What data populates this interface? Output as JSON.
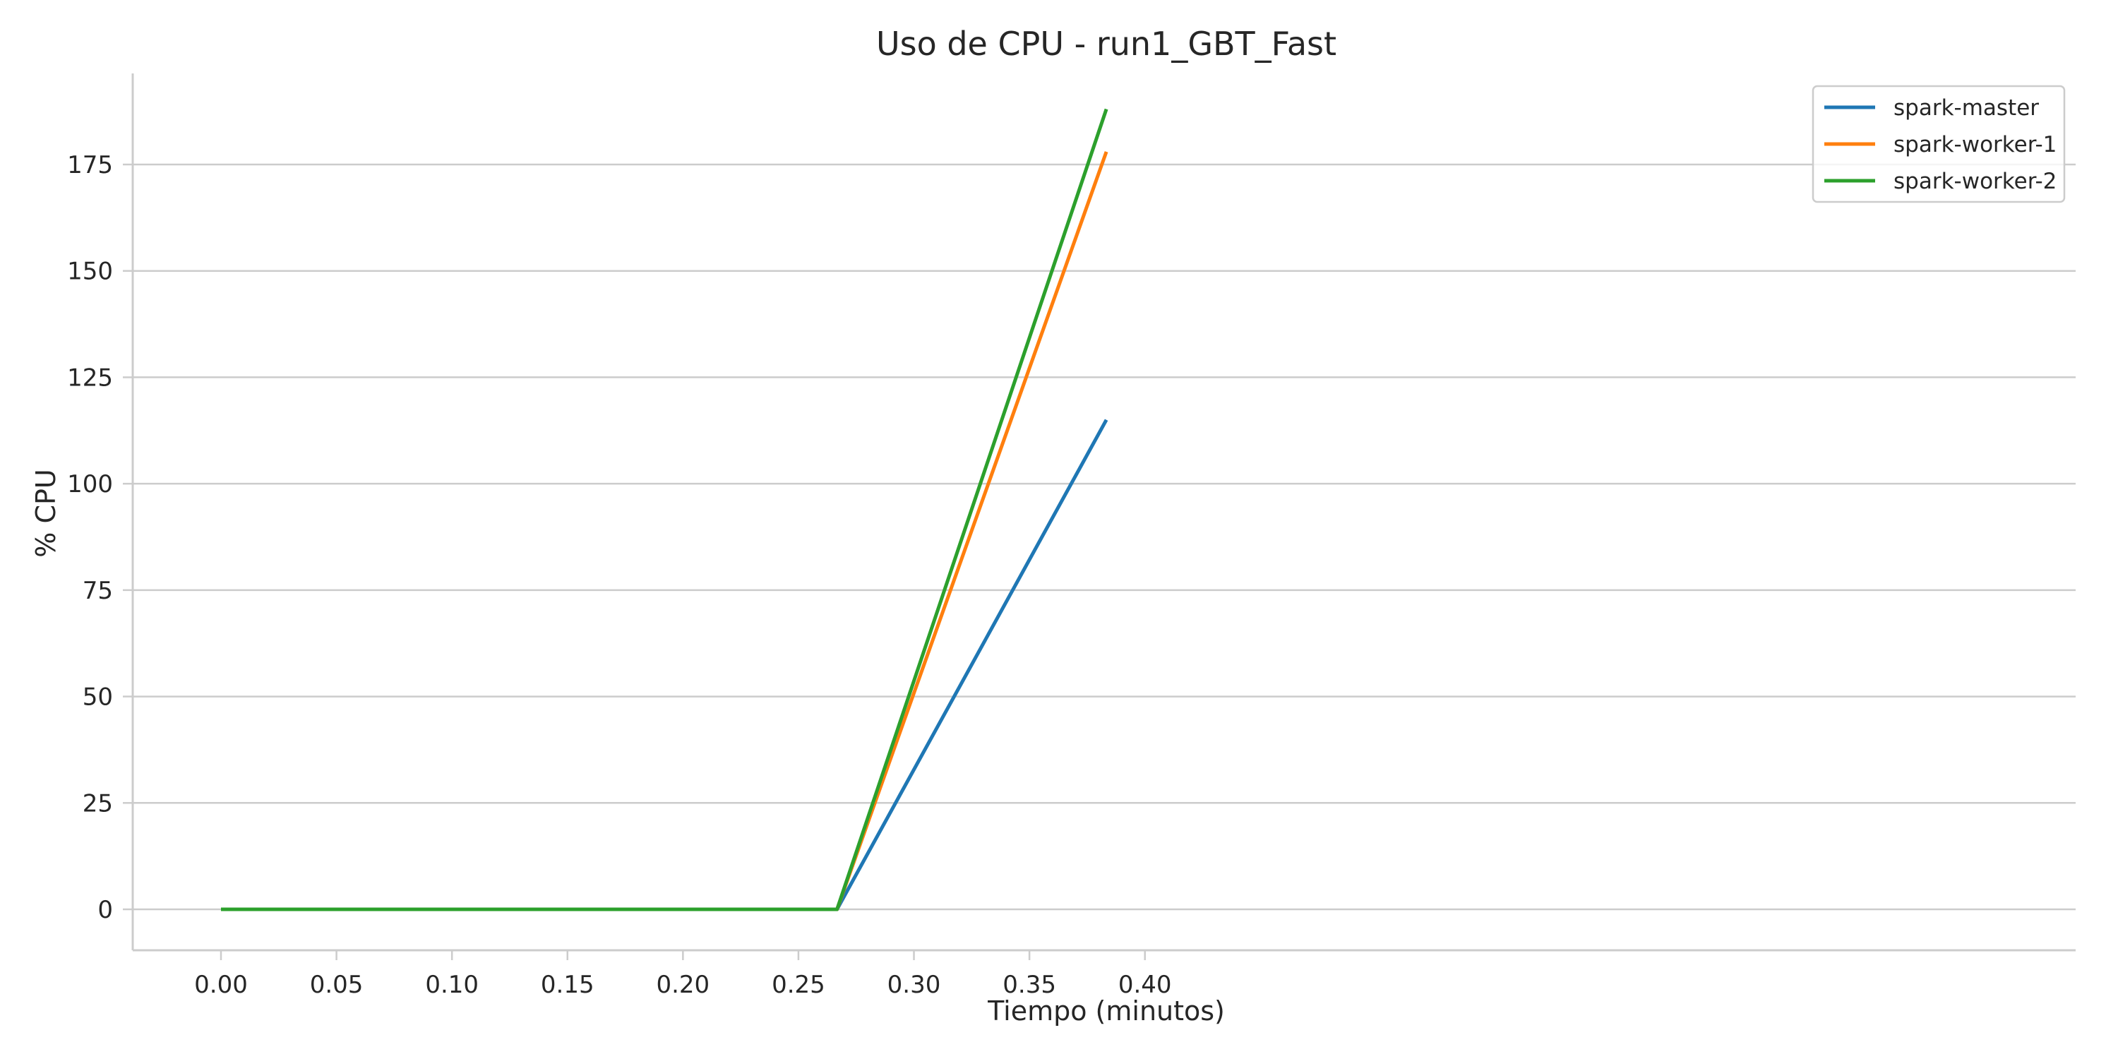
{
  "chart_data": {
    "type": "line",
    "title": "Uso de CPU - run1_GBT_Fast",
    "xlabel": "Tiempo (minutos)",
    "ylabel": "% CPU",
    "xlim": [
      -0.019,
      0.4
    ],
    "ylim": [
      -9.4,
      197
    ],
    "xticks": [
      0.0,
      0.05,
      0.1,
      0.15,
      0.2,
      0.25,
      0.3,
      0.35,
      0.4
    ],
    "xtick_labels": [
      "0.00",
      "0.05",
      "0.10",
      "0.15",
      "0.20",
      "0.25",
      "0.30",
      "0.35",
      "0.40"
    ],
    "yticks": [
      0,
      25,
      50,
      75,
      100,
      125,
      150,
      175
    ],
    "ytick_labels": [
      "0",
      "25",
      "50",
      "75",
      "100",
      "125",
      "150",
      "175"
    ],
    "grid": "horizontal",
    "legend_position": "top-right",
    "series": [
      {
        "name": "spark-master",
        "color": "#1f77b4",
        "x": [
          0.0,
          0.2667,
          0.3833
        ],
        "y": [
          0,
          0,
          115
        ]
      },
      {
        "name": "spark-worker-1",
        "color": "#ff7f0e",
        "x": [
          0.0,
          0.2667,
          0.3833
        ],
        "y": [
          0,
          0,
          178
        ]
      },
      {
        "name": "spark-worker-2",
        "color": "#2ca02c",
        "x": [
          0.0,
          0.2667,
          0.3833
        ],
        "y": [
          0,
          0,
          188
        ]
      }
    ]
  }
}
